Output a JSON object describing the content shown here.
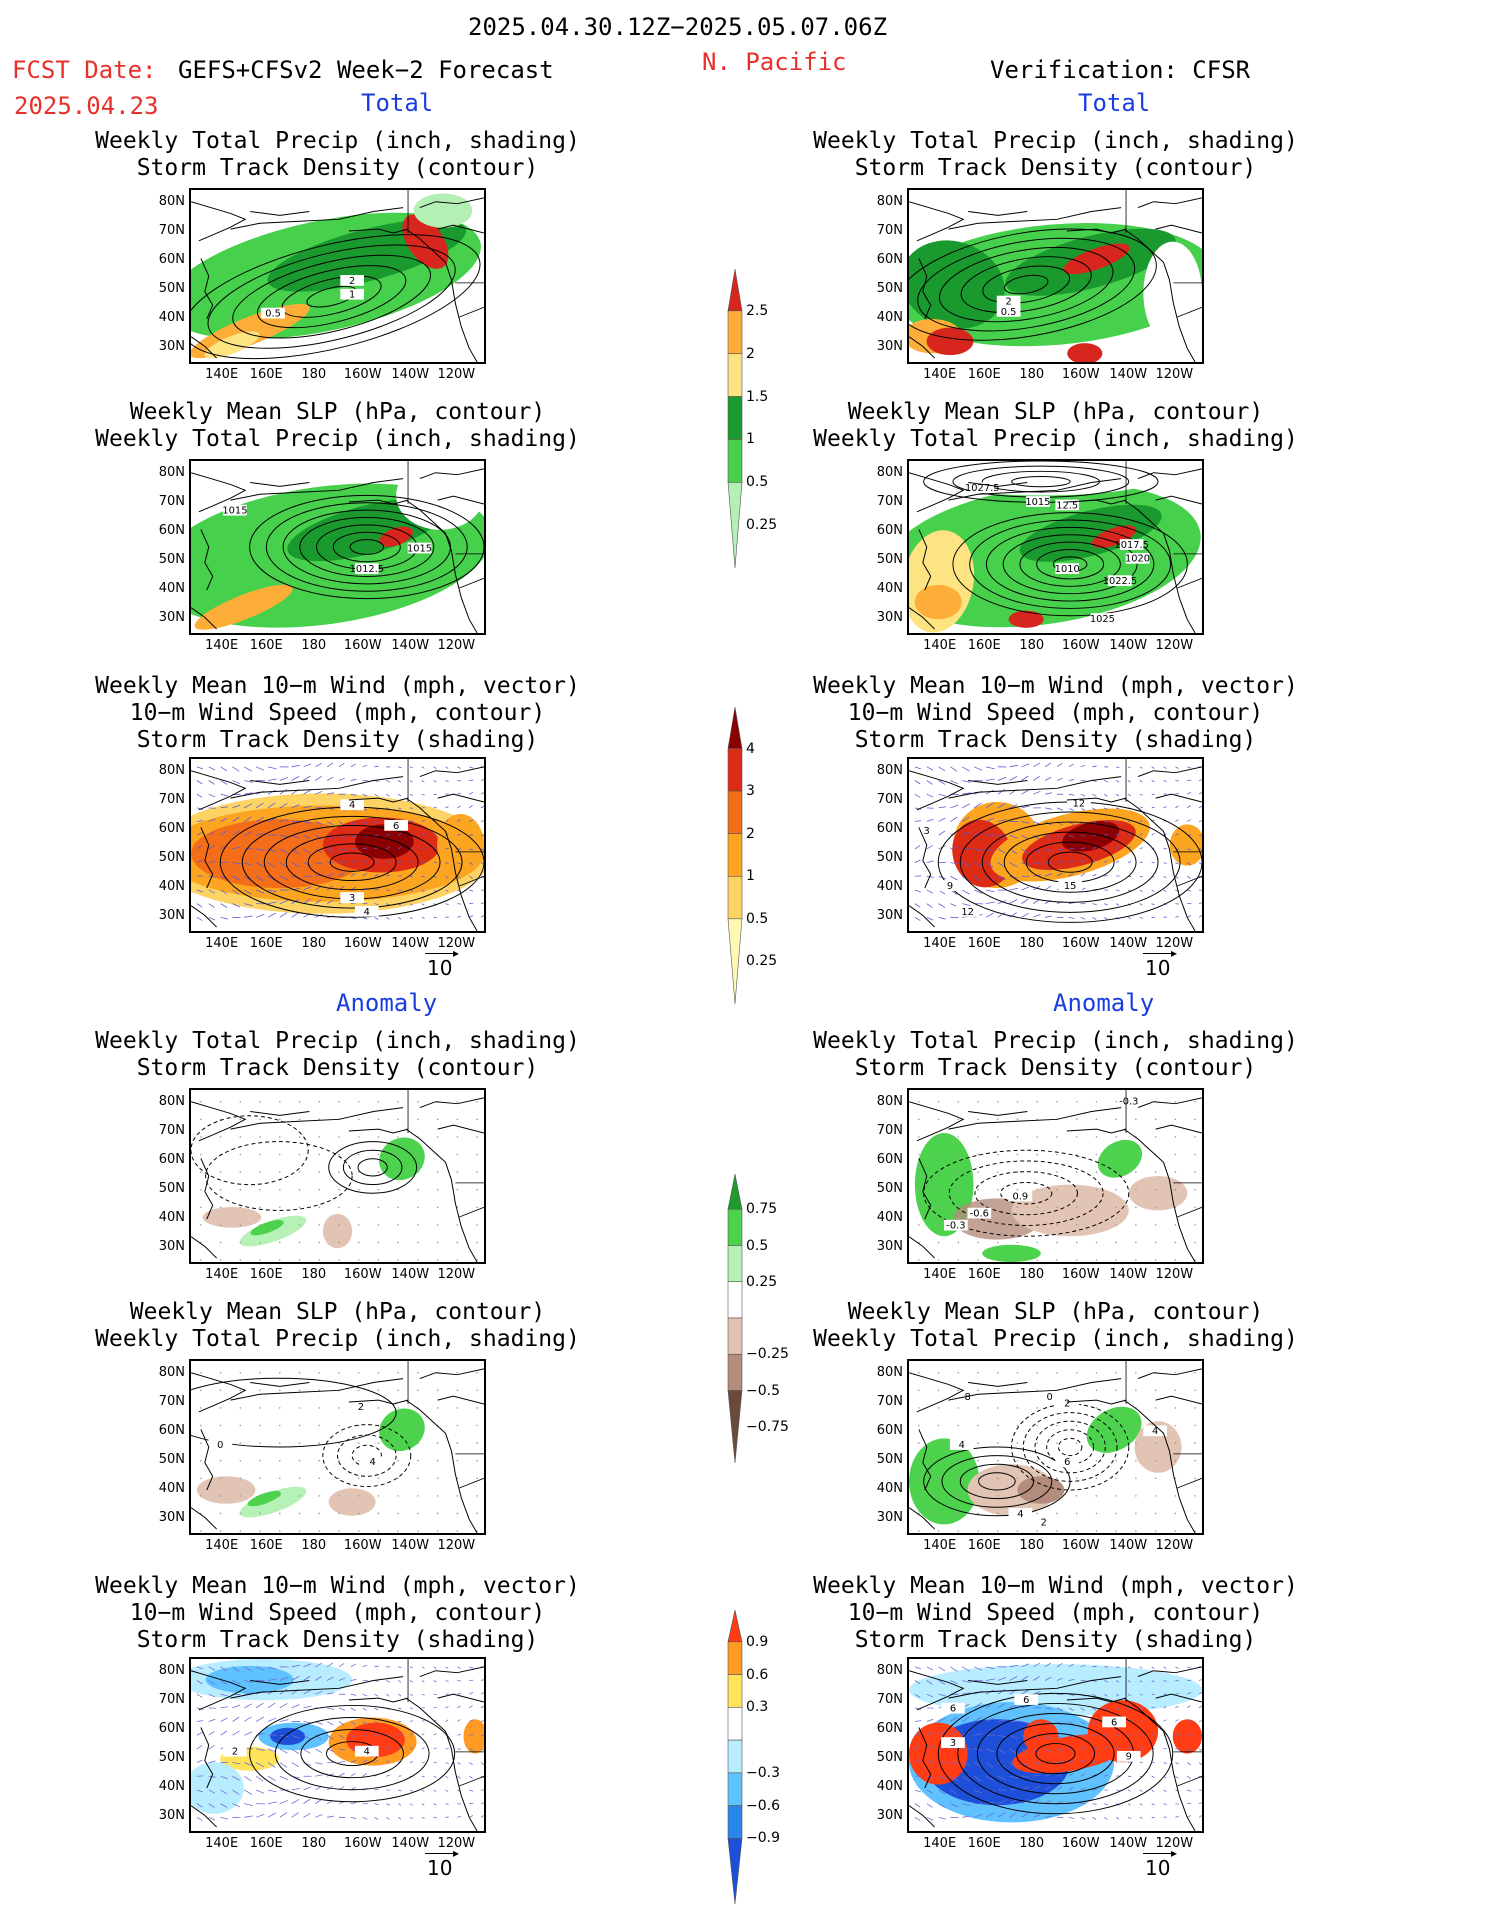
{
  "header": {
    "period": "2025.04.30.12Z−2025.05.07.06Z",
    "region": "N. Pacific",
    "fcst_label": "FCST Date:",
    "model": "GEFS+CFSv2 Week−2 Forecast",
    "fcst_date": "2025.04.23",
    "verification": "Verification: CFSR"
  },
  "sections": {
    "total": "Total",
    "anomaly": "Anomaly"
  },
  "titles": {
    "precip_storm": [
      "Weekly Total Precip (inch, shading)",
      "Storm Track Density (contour)"
    ],
    "slp_precip": [
      "Weekly Mean SLP (hPa, contour)",
      "Weekly Total Precip (inch, shading)"
    ],
    "wind_storm": [
      "Weekly Mean 10−m Wind (mph, vector)",
      "10−m Wind Speed (mph, contour)",
      "Storm Track Density (shading)"
    ]
  },
  "axes": {
    "lat": [
      "80N",
      "70N",
      "60N",
      "50N",
      "40N",
      "30N"
    ],
    "lon": [
      "140E",
      "160E",
      "180",
      "160W",
      "140W",
      "120W"
    ]
  },
  "vector_ref": "10",
  "contour_labels": {
    "p1": [
      "0.5",
      "2",
      "1"
    ],
    "p2": [
      "2",
      "0.5"
    ],
    "p3": [
      "1015",
      "1015",
      "1012.5",
      "1010"
    ],
    "p4": [
      "1027.5",
      "1015",
      "12.5",
      "1017.5",
      "1020",
      "1010",
      "1022.5",
      "1025"
    ],
    "p5": [
      "4",
      "6",
      "3",
      "4"
    ],
    "p6": [
      "12",
      "3",
      "9",
      "15",
      "12"
    ],
    "p8": [
      "-0.3",
      "0.9",
      "-0.6",
      "-0.3"
    ],
    "p9": [
      "2",
      "0",
      "4"
    ],
    "p10": [
      "8",
      "0",
      "2",
      "4",
      "6",
      "4",
      "4",
      "2"
    ],
    "p11": [
      "4",
      "2"
    ],
    "p12": [
      "6",
      "6",
      "6",
      "9",
      "3"
    ]
  },
  "colorbars": {
    "precip": {
      "labels": [
        "2.5",
        "2",
        "1.5",
        "1",
        "0.5",
        "0.25"
      ],
      "colors": [
        "#d7261e",
        "#fdae39",
        "#fde382",
        "#1a9a2e",
        "#46d04b",
        "#b4f0b4"
      ]
    },
    "density": {
      "labels": [
        "4",
        "3",
        "2",
        "1",
        "0.5",
        "0.25"
      ],
      "colors": [
        "#8b0000",
        "#dd2b16",
        "#f46d18",
        "#fca521",
        "#fdd463",
        "#fff8b5"
      ]
    },
    "precip_anom": {
      "labels": [
        "0.75",
        "0.5",
        "0.25",
        "−0.25",
        "−0.5",
        "−0.75"
      ],
      "colors": [
        "#1e9a2e",
        "#4cd24c",
        "#b6f2b6",
        "#ffffff",
        "#e2c4b4",
        "#b48c7c",
        "#6b4a3c"
      ]
    },
    "density_anom": {
      "labels": [
        "0.9",
        "0.6",
        "0.3",
        "−0.3",
        "−0.6",
        "−0.9"
      ],
      "colors": [
        "#ff3c14",
        "#ff9a22",
        "#ffe35a",
        "#ffffff",
        "#b8ecff",
        "#5fc2ff",
        "#2a86e8",
        "#1d4fd8"
      ]
    }
  }
}
